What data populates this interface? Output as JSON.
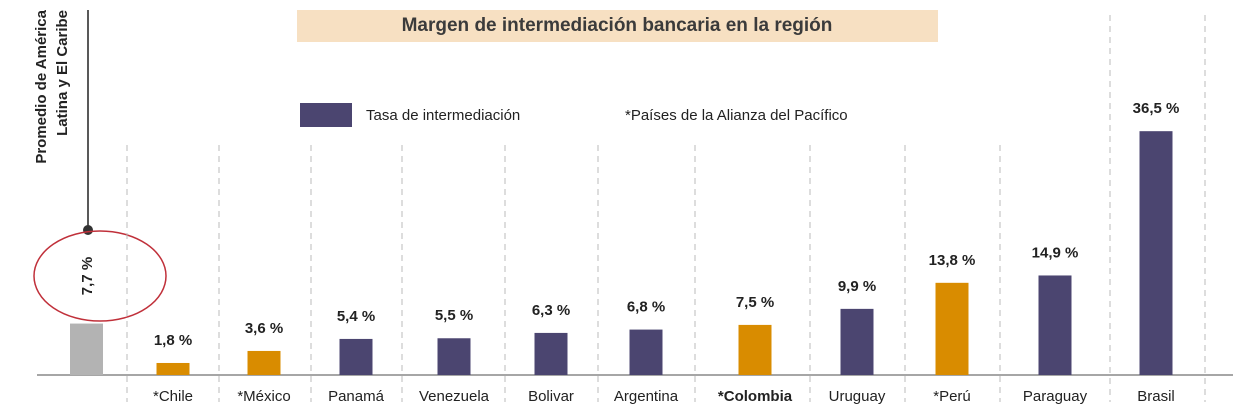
{
  "chart_data": {
    "type": "bar",
    "title": "Margen de intermediación bancaria en la región",
    "series_name": "Tasa de intermediación",
    "series_color": "#4b4570",
    "note": "*Países de la Alianza del Pacífico",
    "categories": [
      "*Chile",
      "*México",
      "Panamá",
      "Venezuela",
      "Bolivar",
      "Argentina",
      "*Colombia",
      "Uruguay",
      "*Perú",
      "Paraguay",
      "Brasil"
    ],
    "values": [
      1.8,
      3.6,
      5.4,
      5.5,
      6.3,
      6.8,
      7.5,
      9.9,
      13.8,
      14.9,
      36.5
    ],
    "value_labels": [
      "1,8 %",
      "3,6 %",
      "5,4 %",
      "5,5 %",
      "6,3 %",
      "6,8 %",
      "7,5 %",
      "9,9 %",
      "13,8 %",
      "14,9 %",
      "36,5 %"
    ],
    "colors": [
      "#d98c00",
      "#d98c00",
      "#4b4570",
      "#4b4570",
      "#4b4570",
      "#4b4570",
      "#d98c00",
      "#4b4570",
      "#d98c00",
      "#4b4570",
      "#4b4570"
    ],
    "bold_category": 6,
    "average": {
      "label_lines": [
        "Promedio de América",
        "Latina y El Caribe"
      ],
      "value": 7.7,
      "value_label": "7,7 %",
      "color": "#b3b3b3"
    }
  }
}
